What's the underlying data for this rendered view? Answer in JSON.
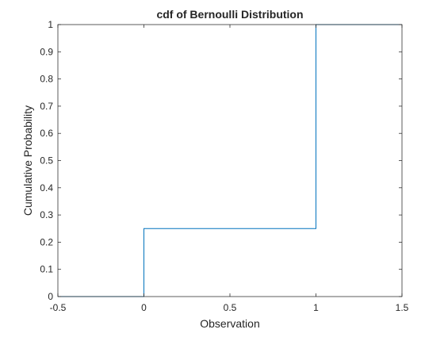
{
  "chart_data": {
    "type": "line",
    "title": "cdf of Bernoulli Distribution",
    "xlabel": "Observation",
    "ylabel": "Cumulative Probability",
    "xlim": [
      -0.5,
      1.5
    ],
    "ylim": [
      0,
      1
    ],
    "xticks": [
      -0.5,
      0,
      0.5,
      1,
      1.5
    ],
    "xtick_labels": [
      "-0.5",
      "0",
      "0.5",
      "1",
      "1.5"
    ],
    "yticks": [
      0,
      0.1,
      0.2,
      0.3,
      0.4,
      0.5,
      0.6,
      0.7,
      0.8,
      0.9,
      1
    ],
    "ytick_labels": [
      "0",
      "0.1",
      "0.2",
      "0.3",
      "0.4",
      "0.5",
      "0.6",
      "0.7",
      "0.8",
      "0.9",
      "1"
    ],
    "grid": false,
    "box": true,
    "series": [
      {
        "style": "stairs",
        "color": "#0072BD",
        "x": [
          -0.5,
          0,
          0,
          1,
          1,
          1.5
        ],
        "y": [
          0,
          0,
          0.25,
          0.25,
          1,
          1
        ]
      }
    ]
  }
}
